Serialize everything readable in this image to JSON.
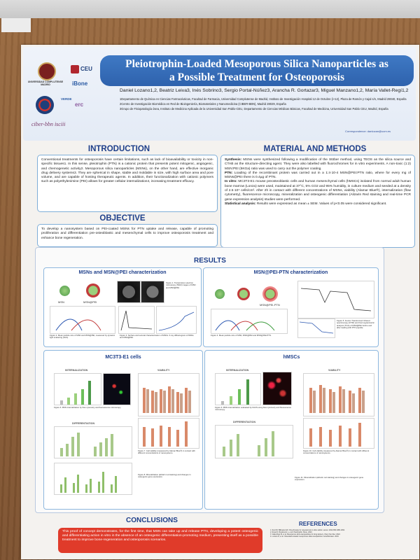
{
  "poster": {
    "title_line1": "Pleiotrophin-Loaded Mesoporous Silica Nanoparticles as",
    "title_line2": "a Possible Treatment for Osteoporosis",
    "authors": "Daniel Lozano1,2, Beatriz Leiva3, Inés Sobrino3, Sergio Portal-Núñez3, Arancha R. Gortazar3, Miguel Manzano1,2, María Vallet-Regí1,2",
    "affiliations": [
      "1Departamento de Química en Ciencias Farmacéuticas, Facultad de Farmacia, Universidad Complutense de Madrid, Instituto de Investigación Hospital 12 de Octubre (i+12), Plaza de Ramón y Cajal s/n, Madrid 28040, España",
      "2Centro de Investigación Biomédica en Red de Bioingeniería, Biomateriales y Nanomedicina (CIBER-BBN), Madrid 28029, España",
      "3Grupo de Fisiopatología ósea, Instituto de Medicina Aplicada de la Universidad San Pablo-CEU, Departamento de Ciencias Médicas Básicas, Facultad de Medicina, Universidad San Pablo CEU, Madrid, España"
    ],
    "correspondence": "Correspondence: danlozan@ucm.es",
    "logos": {
      "ucm": "UNIVERSIDAD COMPLUTENSE MADRID",
      "ceu": "CEU",
      "ibone": "iBone",
      "verde": "VERDE",
      "erc": "erc",
      "ciber": "ciber-bbn isciii"
    }
  },
  "introduction": {
    "heading": "INTRODUCTION",
    "text": "Conventional treatments for osteoporosis have certain limitations, such as lack of bioavailability or toxicity in non-specific tissues1. In this sense, pleiotrophin (PTN) is a cationic protein that presents potent mitogenic, angiogenic, and chemogenetic activity2. Mesoporous silica nanoparticles (MSNs), on the other hand, are effective inorganic drug delivery systems3. They are spherical in shape, stable and moldable in size, with high surface area and pore volume, and are capable of hosting therapeutic agents. In addition, their functionalization with cationic polymers such as polyethylenimine (PEI) allows for greater cellular internalization4, increasing treatment efficacy."
  },
  "objective": {
    "heading": "OBJECTIVE",
    "text": "To develop a nanosystem based on PEI-coated MSNs for PTN uptake and release, capable of promoting proliferation and differentiation pre-osteoblastic and mesenchymal cells to improve osteoporosis treatment and enhance bone regeneration."
  },
  "methods": {
    "heading": "MATERIAL AND METHODS",
    "synthesis_label": "Synthesis:",
    "synthesis": " MSNs were synthesized following a modification of the Stöber method, using TEOS as the silica source and CTAB as the structure-directing agent. They were also labelled with fluorochromes for in vitro experiments. A non-toxic (1:2) MSN:PEI (5KGa) ratio was used to carry out the polymer coating.",
    "ptn_label": "PTN:",
    "ptn": " Loading of the recombinant protein was carried out in a 1:4·10-4 MSN@PEI:PTN ratio, where for every mg of MSNs@PEI there is 0.4µg of PTN.",
    "invitro_label": "In vitro:",
    "invitro": " MC3T3-E1 mouse preosteoblastic cells and human mesenchymal cells (hMSCs) isolated from normal adult human bone marrow (Lonza) were used, maintained at 37°C, 5% CO2 and 95% humidity, in culture medium and seeded at a density of 2.5·10⁴ cells/cm². After 2h in contact with different concentrations of MSNs, viability (Alamar Blue®), internalization (flow cytometry), fluorescence microscopy, mineralization and osteogenic differentiation (Alizarin Red staining and real-time PCR gene expression analysis) studies were performed.",
    "stats_label": "Statistical analysis:",
    "stats": " Results were expressed as mean ± SEM. Values of p<0.05 were considered significant."
  },
  "results": {
    "heading": "RESULTS",
    "panel1_title": "MSNs and MSN@PEI characterization",
    "panel2_title": "MSN@PEI-PTN characterization",
    "panel3_title": "MC3T3-E1 cells",
    "panel4_title": "hMSCs",
    "labels": {
      "msn": "MSN",
      "msn_pei": "MSN@PEI",
      "msn_pei_ptn": "MSN@PEI-PTN",
      "internalization": "INTERNALIZATION",
      "viability": "VIABILITY",
      "differentiation": "DIFFERENTIATION"
    },
    "captions": {
      "fig1": "Figure 1. Transmission electron microscopy (TEM) images of MSN and MSN@PEI.",
      "fig2": "Figure 2. Mean particle size of MSN and MSN@PEI, measured by dynamic light scattering (DLS).",
      "fig3": "Figure 3. Surface and textural characterization of MSNs. X-ray diffractogram of MSNs and MSN@PEI.",
      "fig4": "Figure 4. Mean particle size of MSN, MSN@PEI and MSN@PEI-PTN.",
      "fig5": "Figure 5. Fourier Transformed Infrared spectroscopy (FTIR) and thermogravimetric analysis (TGA) of MSN@PEI before and after loading with PTN peptide.",
      "fig6": "Figure 6. MSN internalization by flow cytometry and fluorescence microscopy.",
      "fig7": "Figure 7. Cell viability (measured by Alamar Blue®) in contact with different concentrations of nanosystems.",
      "fig8": "Figure 8. Mineralization (alizarin red staining) and changes in osteogenic gene expression.",
      "fig9": "Figure 9. MSN internalization evaluated by FACS using flow cytometry and fluorescence microscopy.",
      "fig10": "Figure 10. Cell viability (measured by Alamar Blue®) in contact with different concentrations of nanosystems.",
      "fig11": "Figure 11. Mineralization (alizarin red staining) and changes in osteogenic gene expression."
    }
  },
  "conclusions": {
    "heading": "CONCLUSIONS",
    "text": "This proof of concept demonstrates, for the first time, that MSN can take up and release PTN, developing a potent osteogenic and differentiating action in vitro in the absence of an osteogenic differentiation-promoting medium, presenting itself as a possible treatment to improve bone-regeneration and osteoporosis scenarios."
  },
  "references": {
    "heading": "REFERENCES",
    "items": [
      "1. Reid IR, Billington EO. Drug therapy for osteoporosis in older adults. Lancet. 2022;399:1080-1092.",
      "2. Rossi D, Bonaccorsi L, et al. Pleiotrophin. Bone. 2023.",
      "3. Vallet-Regí M, et al. Mesoporous silica nanoparticles for drug delivery. Chem Soc Rev. 2022.",
      "4. Lozano D, et al. Osteostatin-loaded mesoporous silica nanoparticles. Acta Biomater. 2019."
    ]
  }
}
